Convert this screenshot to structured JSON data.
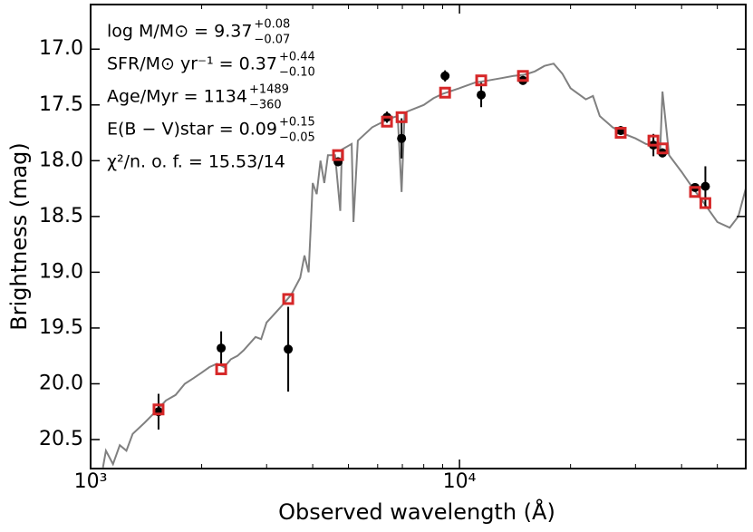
{
  "chart_data": {
    "type": "scatter",
    "xlabel": "Observed wavelength (Å)",
    "ylabel": "Brightness (mag)",
    "xscale": "log",
    "invert_y": true,
    "xlim": [
      1000,
      59700
    ],
    "ylim": [
      16.6,
      20.76
    ],
    "xticks": [
      {
        "value": 1000,
        "label": "10³"
      },
      {
        "value": 10000,
        "label": "10⁴"
      }
    ],
    "xminorticks": [
      2000,
      3000,
      4000,
      5000,
      6000,
      7000,
      8000,
      9000,
      20000,
      30000,
      40000,
      50000
    ],
    "yticks": [
      {
        "value": 17,
        "label": "17.0"
      },
      17.5,
      {
        "value": 18,
        "label": "18.0"
      },
      18.5,
      {
        "value": 19,
        "label": "19.0"
      },
      19.5,
      {
        "value": 20,
        "label": "20.0"
      },
      20.5
    ],
    "annotations": [
      {
        "text": "log M/M⊙ = 9.37",
        "sup": "+0.08",
        "sub": "−0.07"
      },
      {
        "text": "SFR/M⊙ yr⁻¹ = 0.37",
        "sup": "+0.44",
        "sub": "−0.10"
      },
      {
        "text": "Age/Myr = 1134",
        "sup": "+1489",
        "sub": "−360"
      },
      {
        "text": "E(B − V)star = 0.09",
        "sup": "+0.15",
        "sub": "−0.05"
      },
      {
        "text": "χ²/n. o. f. = 15.53/14"
      }
    ],
    "x": [
      1528,
      2259,
      3433,
      4686,
      6359,
      6966,
      9139,
      11450,
      14860,
      27350,
      33550,
      35500,
      43500,
      46400
    ],
    "series": [
      {
        "style": "line",
        "color": "#808080",
        "x": [
          1080,
          1100,
          1150,
          1200,
          1250,
          1300,
          1400,
          1500,
          1600,
          1700,
          1800,
          1900,
          2000,
          2100,
          2200,
          2300,
          2400,
          2500,
          2600,
          2800,
          2900,
          3000,
          3100,
          3300,
          3500,
          3700,
          3800,
          3900,
          3950,
          4000,
          4100,
          4200,
          4300,
          4400,
          4600,
          4750,
          4800,
          5100,
          5160,
          5300,
          5800,
          6300,
          6500,
          6800,
          6966,
          7100,
          7200,
          8000,
          8500,
          9000,
          10000,
          11000,
          12000,
          13000,
          14000,
          15000,
          16000,
          17000,
          18000,
          19000,
          20000,
          22000,
          23000,
          24000,
          26000,
          28000,
          30000,
          32000,
          34000,
          35000,
          35500,
          37000,
          40000,
          43000,
          46000,
          50000,
          54000,
          57000,
          59700
        ],
        "values": [
          20.75,
          20.6,
          20.72,
          20.55,
          20.6,
          20.45,
          20.35,
          20.25,
          20.15,
          20.1,
          20.0,
          19.95,
          19.9,
          19.85,
          19.82,
          19.85,
          19.78,
          19.75,
          19.7,
          19.58,
          19.6,
          19.45,
          19.4,
          19.3,
          19.2,
          19.05,
          18.85,
          19.0,
          18.6,
          18.2,
          18.3,
          18.0,
          18.2,
          17.95,
          17.95,
          18.45,
          17.9,
          17.85,
          18.55,
          17.82,
          17.7,
          17.64,
          17.62,
          17.6,
          18.28,
          17.58,
          17.56,
          17.5,
          17.44,
          17.4,
          17.35,
          17.3,
          17.28,
          17.26,
          17.24,
          17.23,
          17.2,
          17.15,
          17.13,
          17.22,
          17.35,
          17.45,
          17.42,
          17.6,
          17.7,
          17.76,
          17.8,
          17.85,
          17.87,
          17.9,
          17.38,
          17.95,
          18.1,
          18.25,
          18.38,
          18.55,
          18.6,
          18.5,
          18.25
        ]
      },
      {
        "style": "errorbar",
        "color": "#000000",
        "values": [
          20.25,
          19.68,
          19.69,
          18.01,
          17.61,
          17.8,
          17.24,
          17.41,
          17.28,
          17.73,
          17.86,
          17.93,
          18.24,
          18.23
        ],
        "errors": [
          0.16,
          0.15,
          0.38,
          0.04,
          0.05,
          0.18,
          0.05,
          0.11,
          0.04,
          0.04,
          0.1,
          0.04,
          0.03,
          0.18
        ]
      },
      {
        "style": "square",
        "color": "#d62728",
        "values": [
          20.23,
          19.87,
          19.24,
          17.95,
          17.65,
          17.61,
          17.39,
          17.28,
          17.24,
          17.75,
          17.82,
          17.89,
          18.28,
          18.38
        ]
      }
    ]
  }
}
